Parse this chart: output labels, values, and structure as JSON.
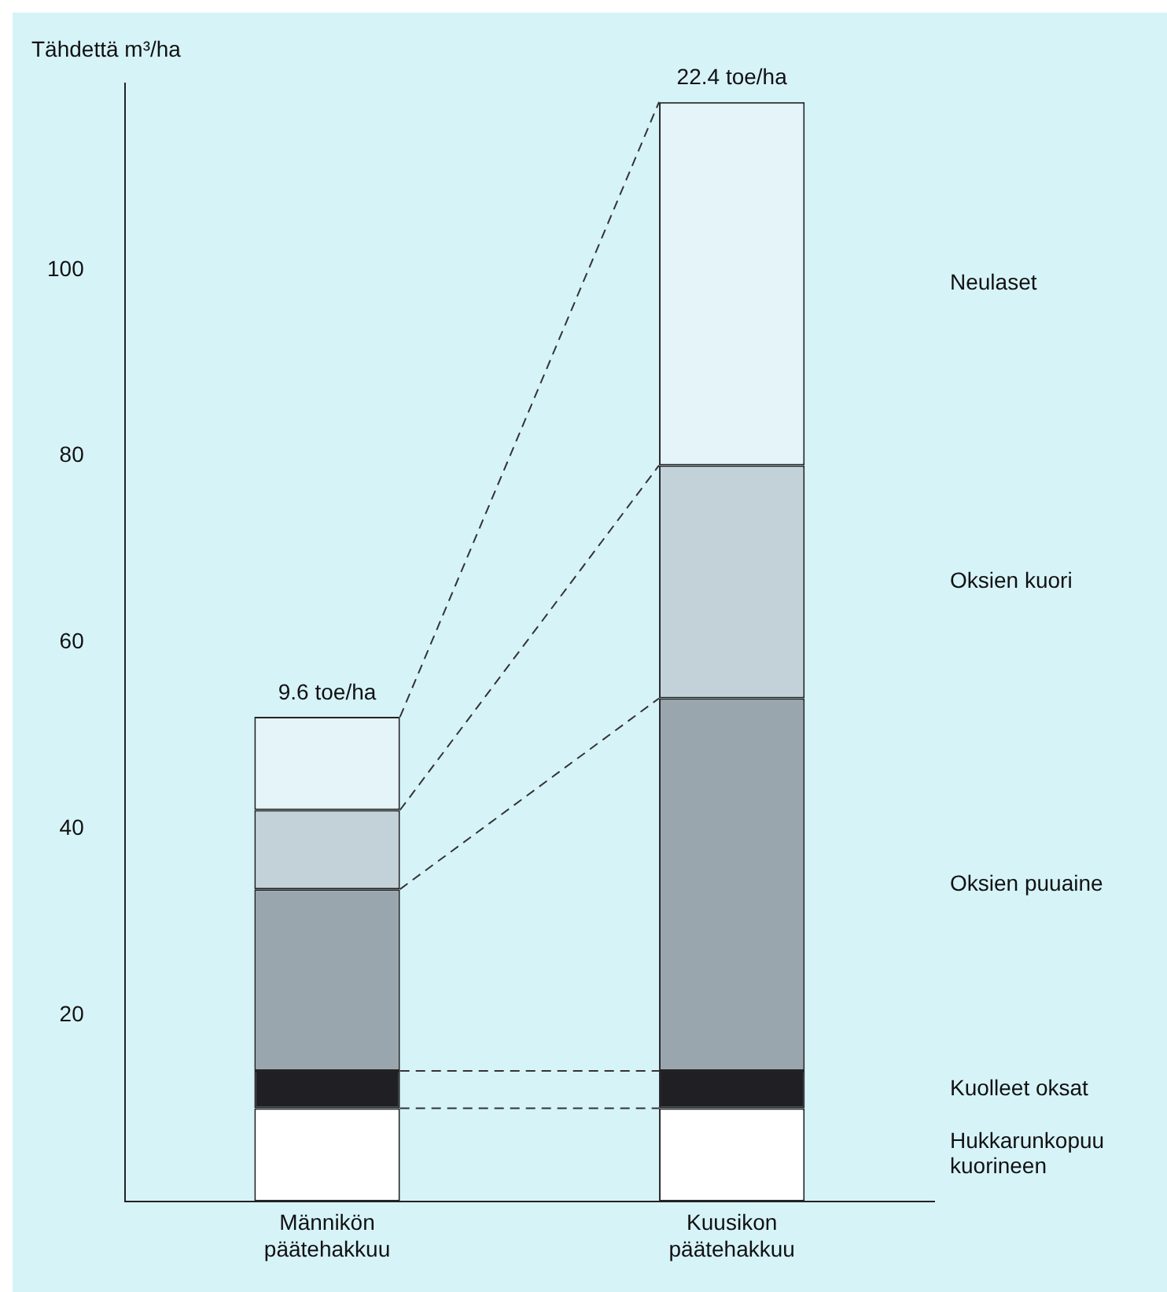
{
  "chart_data": {
    "type": "bar",
    "stacked": true,
    "ylabel": "Tähdettä m³/ha",
    "categories": [
      "Männikön päätehakkuu",
      "Kuusikon päätehakkuu"
    ],
    "series": [
      {
        "name": "Hukkarunkopuu kuorineen",
        "color": "#ffffff",
        "values": [
          10,
          10
        ]
      },
      {
        "name": "Kuolleet oksat",
        "color": "#1f1f24",
        "values": [
          4,
          4
        ]
      },
      {
        "name": "Oksien puuaine",
        "color": "#9aa6ae",
        "values": [
          19.5,
          40
        ]
      },
      {
        "name": "Oksien kuori",
        "color": "#c2d2d8",
        "values": [
          8.5,
          25
        ]
      },
      {
        "name": "Neulaset",
        "color": "#e4f4f8",
        "values": [
          10,
          39
        ]
      }
    ],
    "ylim": [
      0,
      120
    ],
    "yticks": [
      20,
      40,
      60,
      80,
      100
    ],
    "annotations": [
      {
        "text": "9.6 toe/ha",
        "x": "Männikön päätehakkuu",
        "y": 52
      },
      {
        "text": "22.4 toe/ha",
        "x": "Kuusikon päätehakkuu",
        "y": 118
      }
    ],
    "grid": false,
    "legend": false
  }
}
